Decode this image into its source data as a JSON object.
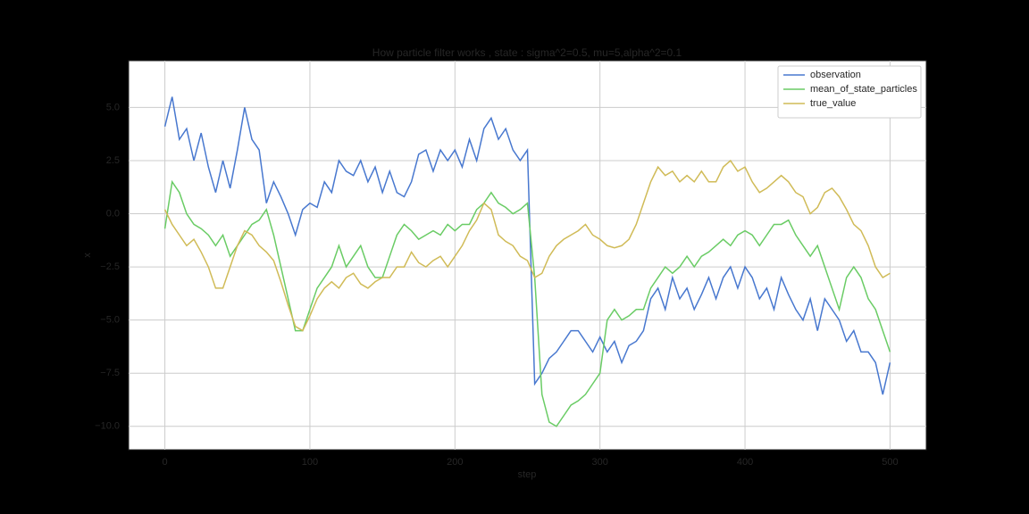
{
  "chart_data": {
    "type": "line",
    "title": "How particle filter works , state : sigma^2=0.5, mu=5,alpha^2=0.1",
    "x_label": "step",
    "y_label": "x",
    "x": [
      0,
      5,
      10,
      15,
      20,
      25,
      30,
      35,
      40,
      45,
      50,
      55,
      60,
      65,
      70,
      75,
      80,
      85,
      90,
      95,
      100,
      105,
      110,
      115,
      120,
      125,
      130,
      135,
      140,
      145,
      150,
      155,
      160,
      165,
      170,
      175,
      180,
      185,
      190,
      195,
      200,
      205,
      210,
      215,
      220,
      225,
      230,
      235,
      240,
      245,
      250,
      255,
      260,
      265,
      270,
      275,
      280,
      285,
      290,
      295,
      300,
      305,
      310,
      315,
      320,
      325,
      330,
      335,
      340,
      345,
      350,
      355,
      360,
      365,
      370,
      375,
      380,
      385,
      390,
      395,
      400,
      405,
      410,
      415,
      420,
      425,
      430,
      435,
      440,
      445,
      450,
      455,
      460,
      465,
      470,
      475,
      480,
      485,
      490,
      495,
      500
    ],
    "series": [
      {
        "name": "observation",
        "color": "#4878cf",
        "values": [
          4.1,
          5.5,
          3.5,
          4.0,
          2.5,
          3.8,
          2.2,
          1.0,
          2.5,
          1.2,
          3.0,
          5.0,
          3.5,
          3.0,
          0.5,
          1.5,
          0.8,
          0.0,
          -1.0,
          0.2,
          0.5,
          0.3,
          1.5,
          1.0,
          2.5,
          2.0,
          1.8,
          2.5,
          1.5,
          2.2,
          1.0,
          2.0,
          1.0,
          0.8,
          1.5,
          2.8,
          3.0,
          2.0,
          3.0,
          2.5,
          3.0,
          2.2,
          3.5,
          2.5,
          4.0,
          4.5,
          3.5,
          4.0,
          3.0,
          2.5,
          3.0,
          -8.0,
          -7.5,
          -6.8,
          -6.5,
          -6.0,
          -5.5,
          -5.5,
          -6.0,
          -6.5,
          -5.8,
          -6.5,
          -6.0,
          -7.0,
          -6.2,
          -6.0,
          -5.5,
          -4.0,
          -3.5,
          -4.5,
          -3.0,
          -4.0,
          -3.5,
          -4.5,
          -3.8,
          -3.0,
          -4.0,
          -3.0,
          -2.5,
          -3.5,
          -2.5,
          -3.0,
          -4.0,
          -3.5,
          -4.5,
          -3.0,
          -3.8,
          -4.5,
          -5.0,
          -4.0,
          -5.5,
          -4.0,
          -4.5,
          -5.0,
          -6.0,
          -5.5,
          -6.5,
          -6.5,
          -7.0,
          -8.5,
          -7.0
        ]
      },
      {
        "name": "mean_of_state_particles",
        "color": "#6acc65",
        "values": [
          -0.7,
          1.5,
          1.0,
          0.0,
          -0.5,
          -0.7,
          -1.0,
          -1.5,
          -1.0,
          -2.0,
          -1.5,
          -1.0,
          -0.5,
          -0.3,
          0.2,
          -1.0,
          -2.5,
          -4.0,
          -5.5,
          -5.5,
          -4.5,
          -3.5,
          -3.0,
          -2.5,
          -1.5,
          -2.5,
          -2.0,
          -1.5,
          -2.5,
          -3.0,
          -3.0,
          -2.0,
          -1.0,
          -0.5,
          -0.8,
          -1.2,
          -1.0,
          -0.8,
          -1.0,
          -0.5,
          -0.8,
          -0.5,
          -0.5,
          0.2,
          0.5,
          1.0,
          0.5,
          0.3,
          0.0,
          0.2,
          0.5,
          -3.0,
          -8.5,
          -9.8,
          -10.0,
          -9.5,
          -9.0,
          -8.8,
          -8.5,
          -8.0,
          -7.5,
          -5.0,
          -4.5,
          -5.0,
          -4.8,
          -4.5,
          -4.5,
          -3.5,
          -3.0,
          -2.5,
          -2.8,
          -2.5,
          -2.0,
          -2.5,
          -2.0,
          -1.8,
          -1.5,
          -1.2,
          -1.5,
          -1.0,
          -0.8,
          -1.0,
          -1.5,
          -1.0,
          -0.5,
          -0.5,
          -0.3,
          -1.0,
          -1.5,
          -2.0,
          -1.5,
          -2.5,
          -3.5,
          -4.5,
          -3.0,
          -2.5,
          -3.0,
          -4.0,
          -4.5,
          -5.5,
          -6.5
        ]
      },
      {
        "name": "true_value",
        "color": "#d0bb57",
        "values": [
          0.2,
          -0.5,
          -1.0,
          -1.5,
          -1.2,
          -1.8,
          -2.5,
          -3.5,
          -3.5,
          -2.5,
          -1.5,
          -0.8,
          -1.0,
          -1.5,
          -1.8,
          -2.2,
          -3.2,
          -4.3,
          -5.3,
          -5.5,
          -4.8,
          -4.0,
          -3.5,
          -3.2,
          -3.5,
          -3.0,
          -2.8,
          -3.3,
          -3.5,
          -3.2,
          -3.0,
          -3.0,
          -2.5,
          -2.5,
          -1.8,
          -2.3,
          -2.5,
          -2.2,
          -2.0,
          -2.5,
          -2.0,
          -1.5,
          -0.8,
          -0.3,
          0.5,
          0.2,
          -1.0,
          -1.3,
          -1.5,
          -2.0,
          -2.2,
          -3.0,
          -2.8,
          -2.0,
          -1.5,
          -1.2,
          -1.0,
          -0.8,
          -0.5,
          -1.0,
          -1.2,
          -1.5,
          -1.6,
          -1.5,
          -1.2,
          -0.5,
          0.5,
          1.5,
          2.2,
          1.8,
          2.0,
          1.5,
          1.8,
          1.5,
          2.0,
          1.5,
          1.5,
          2.2,
          2.5,
          2.0,
          2.2,
          1.5,
          1.0,
          1.2,
          1.5,
          1.8,
          1.5,
          1.0,
          0.8,
          0.0,
          0.3,
          1.0,
          1.2,
          0.8,
          0.2,
          -0.5,
          -0.8,
          -1.5,
          -2.5,
          -3.0,
          -2.8
        ]
      }
    ],
    "xlim": [
      -25,
      525
    ],
    "ylim": [
      -11.1,
      7.2
    ],
    "xticks": [
      0,
      100,
      200,
      300,
      400,
      500
    ],
    "yticks": [
      {
        "value": 5,
        "label": "5.0"
      },
      {
        "value": 2.5,
        "label": "2.5"
      },
      {
        "value": 0,
        "label": "0.0"
      },
      {
        "value": -2.5,
        "label": "−2.5"
      },
      {
        "value": -5,
        "label": "−5.0"
      },
      {
        "value": -7.5,
        "label": "−7.5"
      },
      {
        "value": -10,
        "label": "−10.0"
      }
    ],
    "grid": true,
    "legend": "upper right"
  }
}
